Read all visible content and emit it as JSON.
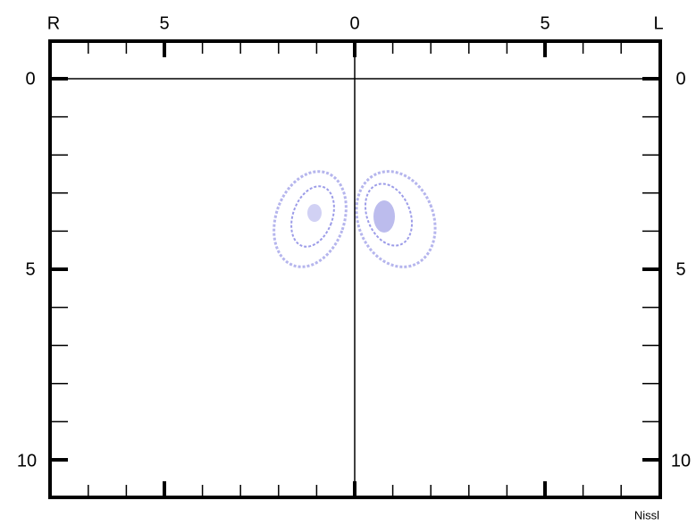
{
  "top_labels": [
    "R",
    "5",
    "0",
    "5",
    "L"
  ],
  "left_labels": [
    "0",
    "5",
    "10"
  ],
  "right_labels": [
    "0",
    "5",
    "10"
  ],
  "caption": "Nissl"
}
